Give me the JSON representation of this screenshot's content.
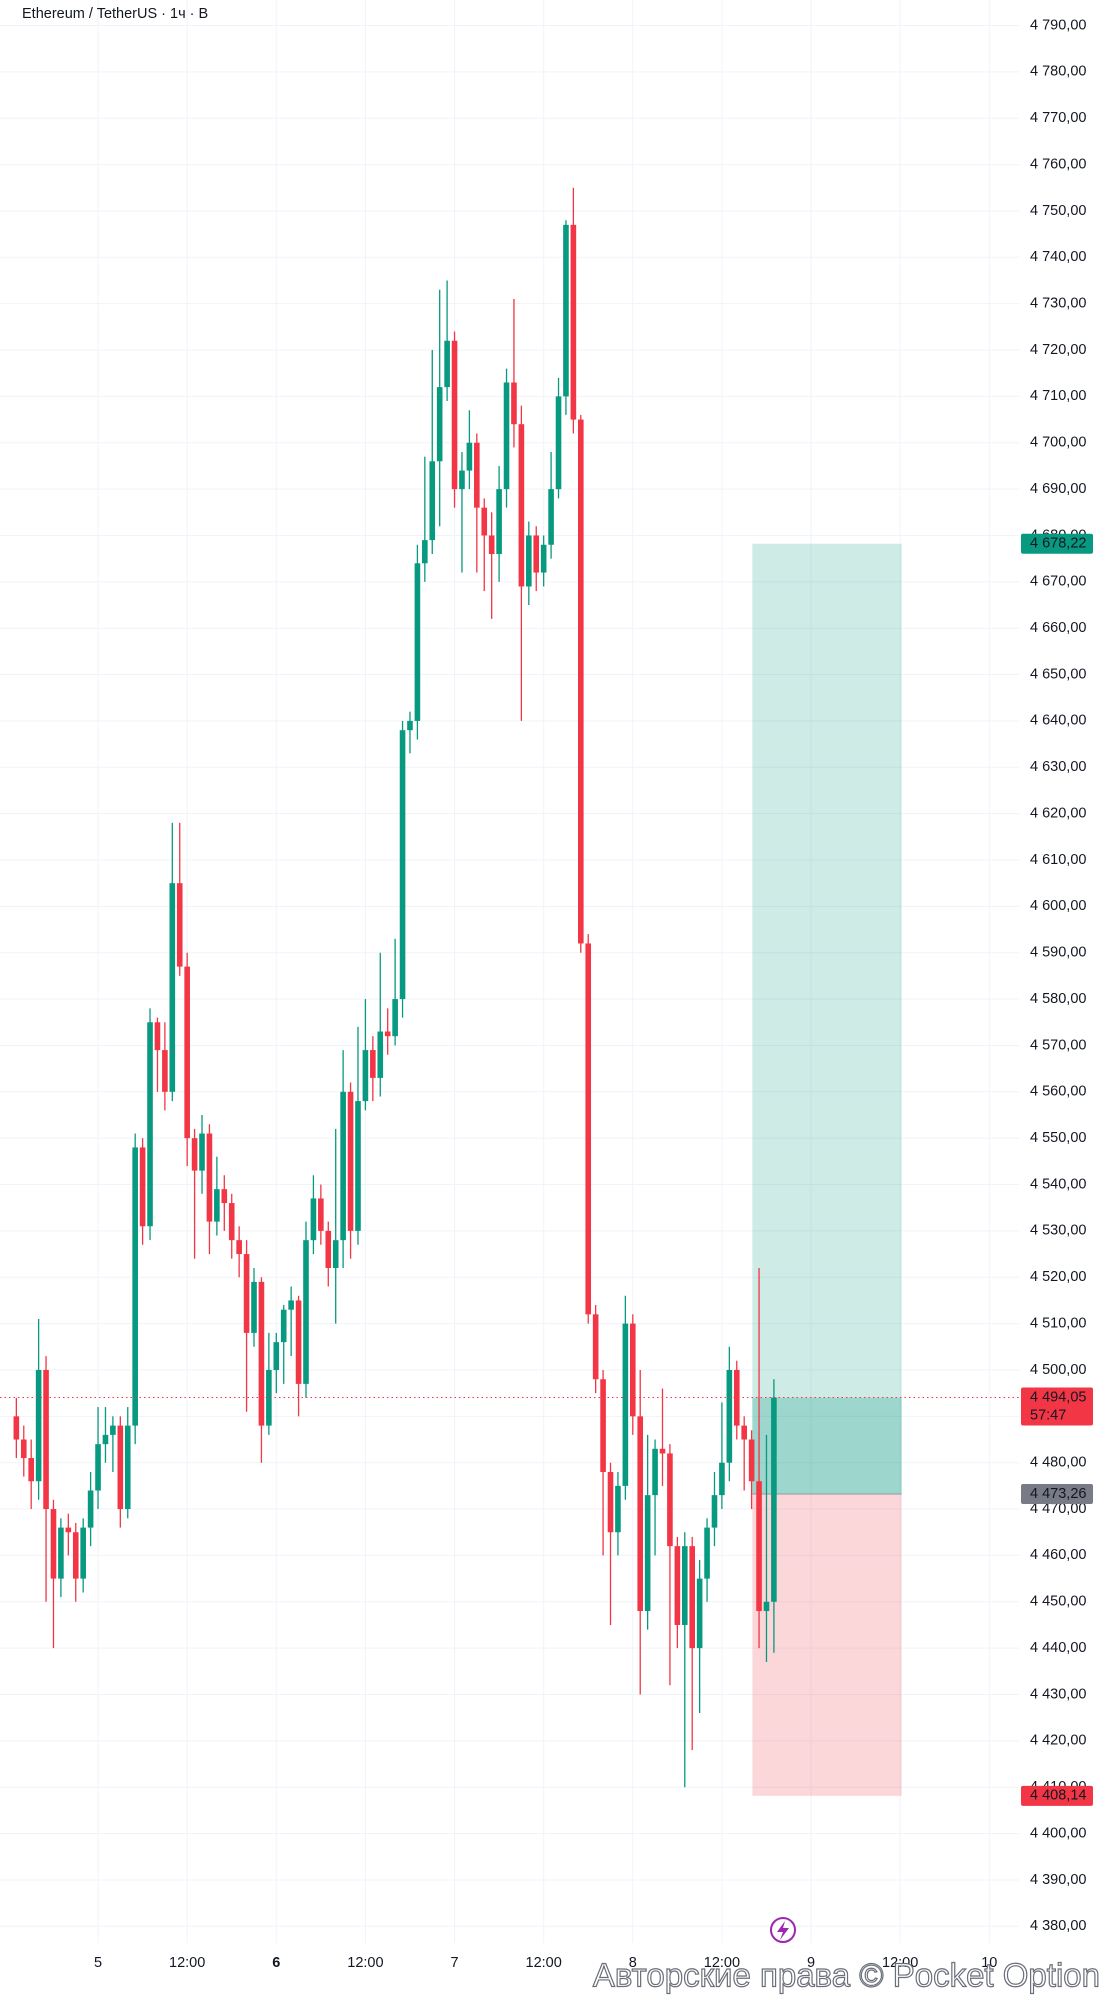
{
  "chart_data": {
    "type": "candlestick",
    "header": "Ethereum / TetherUS · 1ч · B",
    "watermark": "Авторские права © Pocket Option",
    "up_color": "#089981",
    "down_color": "#f23645",
    "grid": true,
    "xlim": [
      -13.2,
      124
    ],
    "ylim": [
      4376.4,
      4795.5
    ],
    "x": [
      -11,
      -10,
      -9,
      -8,
      -7,
      -6,
      -5,
      -4,
      -3,
      -2,
      -1,
      0,
      1,
      2,
      3,
      4,
      5,
      6,
      7,
      8,
      9,
      10,
      11,
      12,
      13,
      14,
      15,
      16,
      17,
      18,
      19,
      20,
      21,
      22,
      23,
      24,
      25,
      26,
      27,
      28,
      29,
      30,
      31,
      32,
      33,
      34,
      35,
      36,
      37,
      38,
      39,
      40,
      41,
      42,
      43,
      44,
      45,
      46,
      47,
      48,
      49,
      50,
      51,
      52,
      53,
      54,
      55,
      56,
      57,
      58,
      59,
      60,
      61,
      62,
      63,
      64,
      65,
      66,
      67,
      68,
      69,
      70,
      71,
      72,
      73,
      74,
      75,
      76,
      77,
      78,
      79,
      80,
      81,
      82,
      83,
      84,
      85,
      86,
      87,
      88,
      89,
      90,
      91
    ],
    "open": [
      4490,
      4485,
      4481,
      4476,
      4500,
      4470,
      4455,
      4466,
      4465,
      4455,
      4466,
      4474,
      4484,
      4486,
      4488,
      4470,
      4488,
      4548,
      4531,
      4575,
      4569,
      4560,
      4605,
      4587,
      4550,
      4543,
      4551,
      4532,
      4539,
      4536,
      4528,
      4525,
      4508,
      4519,
      4488,
      4500,
      4506,
      4513,
      4515,
      4497,
      4528,
      4537,
      4530,
      4522,
      4528,
      4560,
      4530,
      4558,
      4569,
      4563,
      4573,
      4572,
      4580,
      4638,
      4640,
      4674,
      4679,
      4696,
      4712,
      4722,
      4690,
      4694,
      4700,
      4686,
      4680,
      4676,
      4690,
      4713,
      4704,
      4669,
      4680,
      4672,
      4678,
      4690,
      4710,
      4747,
      4705,
      4592,
      4512,
      4498,
      4478,
      4465,
      4475,
      4510,
      4490,
      4448,
      4473,
      4483,
      4482,
      4462,
      4445,
      4462,
      4440,
      4455,
      4466,
      4473,
      4480,
      4500,
      4488,
      4485,
      4476,
      4448,
      4450
    ],
    "high": [
      4494,
      4488,
      4485,
      4511,
      4503,
      4472,
      4468,
      4469,
      4467,
      4468,
      4478,
      4492,
      4492,
      4490,
      4490,
      4492,
      4551,
      4550,
      4578,
      4576,
      4575,
      4618,
      4618,
      4590,
      4552,
      4555,
      4553,
      4546,
      4542,
      4538,
      4531,
      4528,
      4522,
      4520,
      4508,
      4508,
      4514,
      4518,
      4516,
      4532,
      4542,
      4540,
      4532,
      4552,
      4569,
      4562,
      4574,
      4580,
      4572,
      4590,
      4578,
      4593,
      4640,
      4642,
      4678,
      4697,
      4720,
      4733,
      4735,
      4724,
      4698,
      4707,
      4702,
      4688,
      4685,
      4695,
      4716,
      4731,
      4708,
      4683,
      4682,
      4680,
      4698,
      4714,
      4748,
      4755,
      4706,
      4594,
      4514,
      4500,
      4480,
      4478,
      4516,
      4512,
      4500,
      4486,
      4485,
      4496,
      4484,
      4464,
      4465,
      4464,
      4459,
      4468,
      4478,
      4493,
      4505,
      4502,
      4490,
      4487,
      4522,
      4486,
      4498
    ],
    "low": [
      4481,
      4477,
      4470,
      4472,
      4450,
      4440,
      4451,
      4460,
      4450,
      4452,
      4462,
      4470,
      4480,
      4478,
      4466,
      4468,
      4484,
      4527,
      4528,
      4560,
      4556,
      4558,
      4585,
      4544,
      4524,
      4538,
      4525,
      4529,
      4530,
      4524,
      4520,
      4491,
      4505,
      4480,
      4486,
      4495,
      4497,
      4503,
      4490,
      4494,
      4525,
      4527,
      4518,
      4510,
      4522,
      4524,
      4527,
      4556,
      4558,
      4559,
      4568,
      4570,
      4576,
      4633,
      4636,
      4670,
      4676,
      4682,
      4709,
      4686,
      4672,
      4690,
      4672,
      4668,
      4662,
      4670,
      4686,
      4699,
      4640,
      4665,
      4668,
      4669,
      4675,
      4688,
      4706,
      4702,
      4590,
      4510,
      4495,
      4460,
      4445,
      4460,
      4472,
      4486,
      4430,
      4444,
      4460,
      4475,
      4432,
      4440,
      4410,
      4418,
      4426,
      4450,
      4462,
      4470,
      4476,
      4485,
      4474,
      4470,
      4440,
      4437,
      4439
    ],
    "close": [
      4485,
      4481,
      4476,
      4500,
      4470,
      4455,
      4466,
      4465,
      4455,
      4466,
      4474,
      4484,
      4486,
      4488,
      4470,
      4488,
      4548,
      4531,
      4575,
      4569,
      4560,
      4605,
      4587,
      4550,
      4543,
      4551,
      4532,
      4539,
      4536,
      4528,
      4525,
      4508,
      4519,
      4488,
      4500,
      4506,
      4513,
      4515,
      4497,
      4528,
      4537,
      4530,
      4522,
      4528,
      4560,
      4530,
      4558,
      4569,
      4563,
      4573,
      4572,
      4580,
      4638,
      4640,
      4674,
      4679,
      4696,
      4712,
      4722,
      4690,
      4694,
      4700,
      4686,
      4680,
      4676,
      4690,
      4713,
      4704,
      4669,
      4680,
      4672,
      4678,
      4690,
      4710,
      4747,
      4705,
      4592,
      4512,
      4498,
      4478,
      4465,
      4475,
      4510,
      4490,
      4448,
      4473,
      4483,
      4482,
      4462,
      4445,
      4462,
      4440,
      4455,
      4466,
      4473,
      4480,
      4500,
      4488,
      4485,
      4476,
      4448,
      4450,
      4494.05
    ],
    "position": {
      "x_range": [
        88.1,
        108.2
      ],
      "target": {
        "value": 4678.22,
        "label": "4 678,22",
        "color": "#089981"
      },
      "entry": {
        "value": 4473.26,
        "label": "4 473,26",
        "color": "#787b86"
      },
      "stop": {
        "value": 4408.14,
        "label": "4 408,14",
        "color": "#f23645"
      }
    },
    "last_price": {
      "value": 4494.05,
      "label": "4 494,05",
      "countdown": "57:47",
      "color": "#f23645"
    },
    "xticks": [
      {
        "value": 0,
        "label": "5"
      },
      {
        "value": 12,
        "label": "12:00"
      },
      {
        "value": 24,
        "label": "6",
        "bold": true
      },
      {
        "value": 36,
        "label": "12:00"
      },
      {
        "value": 48,
        "label": "7"
      },
      {
        "value": 60,
        "label": "12:00"
      },
      {
        "value": 72,
        "label": "8"
      },
      {
        "value": 84,
        "label": "12:00"
      },
      {
        "value": 96,
        "label": "9"
      },
      {
        "value": 108,
        "label": "12:00"
      },
      {
        "value": 120,
        "label": "10"
      }
    ],
    "yticks": [
      {
        "value": 4380,
        "label": "4 380,00"
      },
      {
        "value": 4390,
        "label": "4 390,00"
      },
      {
        "value": 4400,
        "label": "4 400,00"
      },
      {
        "value": 4410,
        "label": "4 410,00"
      },
      {
        "value": 4420,
        "label": "4 420,00"
      },
      {
        "value": 4430,
        "label": "4 430,00"
      },
      {
        "value": 4440,
        "label": "4 440,00"
      },
      {
        "value": 4450,
        "label": "4 450,00"
      },
      {
        "value": 4460,
        "label": "4 460,00"
      },
      {
        "value": 4470,
        "label": "4 470,00"
      },
      {
        "value": 4480,
        "label": "4 480,00"
      },
      {
        "value": 4490,
        "label": "4 490,00"
      },
      {
        "value": 4500,
        "label": "4 500,00"
      },
      {
        "value": 4510,
        "label": "4 510,00"
      },
      {
        "value": 4520,
        "label": "4 520,00"
      },
      {
        "value": 4530,
        "label": "4 530,00"
      },
      {
        "value": 4540,
        "label": "4 540,00"
      },
      {
        "value": 4550,
        "label": "4 550,00"
      },
      {
        "value": 4560,
        "label": "4 560,00"
      },
      {
        "value": 4570,
        "label": "4 570,00"
      },
      {
        "value": 4580,
        "label": "4 580,00"
      },
      {
        "value": 4590,
        "label": "4 590,00"
      },
      {
        "value": 4600,
        "label": "4 600,00"
      },
      {
        "value": 4610,
        "label": "4 610,00"
      },
      {
        "value": 4620,
        "label": "4 620,00"
      },
      {
        "value": 4630,
        "label": "4 630,00"
      },
      {
        "value": 4640,
        "label": "4 640,00"
      },
      {
        "value": 4650,
        "label": "4 650,00"
      },
      {
        "value": 4660,
        "label": "4 660,00"
      },
      {
        "value": 4670,
        "label": "4 670,00"
      },
      {
        "value": 4680,
        "label": "4 680,00"
      },
      {
        "value": 4690,
        "label": "4 690,00"
      },
      {
        "value": 4700,
        "label": "4 700,00"
      },
      {
        "value": 4710,
        "label": "4 710,00"
      },
      {
        "value": 4720,
        "label": "4 720,00"
      },
      {
        "value": 4730,
        "label": "4 730,00"
      },
      {
        "value": 4740,
        "label": "4 740,00"
      },
      {
        "value": 4750,
        "label": "4 750,00"
      },
      {
        "value": 4760,
        "label": "4 760,00"
      },
      {
        "value": 4770,
        "label": "4 770,00"
      },
      {
        "value": 4780,
        "label": "4 780,00"
      },
      {
        "value": 4790,
        "label": "4 790,00"
      }
    ]
  }
}
